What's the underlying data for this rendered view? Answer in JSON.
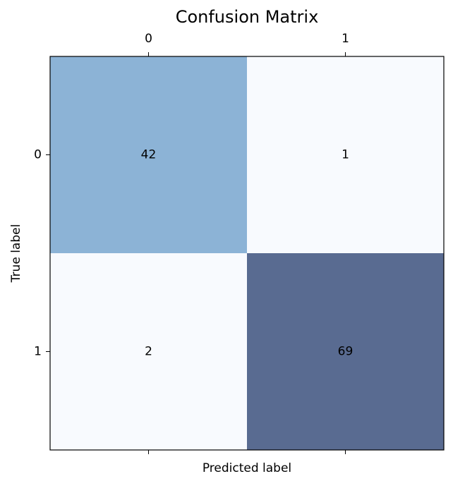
{
  "chart_data": {
    "type": "heatmap",
    "title": "Confusion Matrix",
    "xlabel": "Predicted label",
    "ylabel": "True label",
    "x_categories": [
      "0",
      "1"
    ],
    "y_categories": [
      "0",
      "1"
    ],
    "values": [
      [
        42,
        1
      ],
      [
        2,
        69
      ]
    ],
    "colormap": "Blues",
    "cell_colors": [
      [
        "#8cb3d6",
        "#f8fafe"
      ],
      [
        "#f8fafe",
        "#596b91"
      ]
    ],
    "x_ticks_position": "top-and-bottom",
    "grid": false
  }
}
